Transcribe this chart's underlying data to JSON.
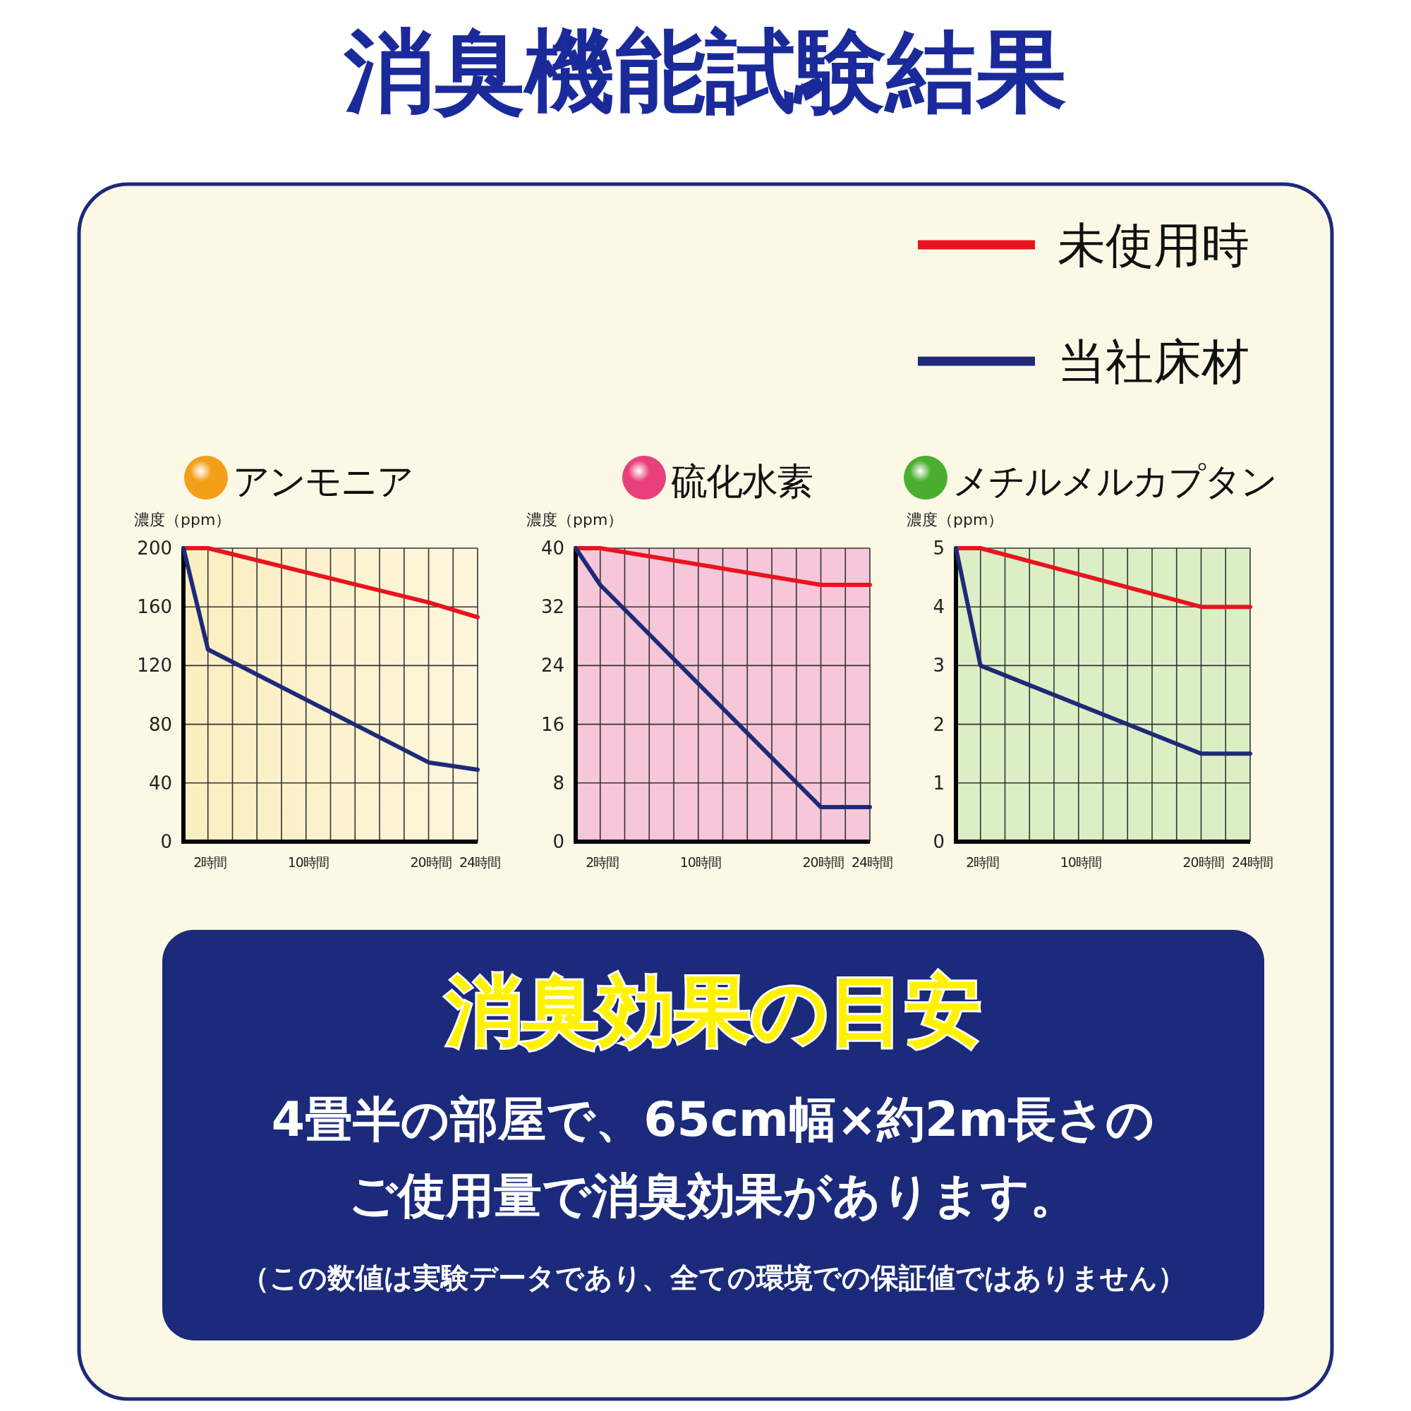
{
  "chart_data": [
    {
      "type": "other",
      "title": "消臭機能試験結果"
    },
    {
      "type": "line",
      "title": "アンモニア",
      "ylabel": "濃度（ppm）",
      "x": [
        0,
        2,
        20,
        24
      ],
      "xlim": [
        0,
        24
      ],
      "ylim": [
        0,
        200
      ],
      "yticks": [
        0,
        40,
        80,
        120,
        160,
        200
      ],
      "xticks": [
        {
          "value": 2,
          "label": "2時間"
        },
        {
          "value": 4,
          "label": null
        },
        {
          "value": 6,
          "label": null
        },
        {
          "value": 8,
          "label": null
        },
        {
          "value": 10,
          "label": "10時間"
        },
        {
          "value": 12,
          "label": null
        },
        {
          "value": 14,
          "label": null
        },
        {
          "value": 16,
          "label": null
        },
        {
          "value": 18,
          "label": null
        },
        {
          "value": 20,
          "label": "20時間"
        },
        {
          "value": 22,
          "label": null
        },
        {
          "value": 24,
          "label": "24時間"
        }
      ],
      "grid": true,
      "legend": "top right",
      "series": [
        {
          "name": "未使用時",
          "color": "#e8141e",
          "values": [
            200,
            200,
            163,
            153
          ]
        },
        {
          "name": "当社床材",
          "color": "#1e2a78",
          "values": [
            200,
            131,
            54,
            49
          ]
        }
      ]
    },
    {
      "type": "line",
      "title": "硫化水素",
      "ylabel": "濃度（ppm）",
      "x": [
        0,
        2,
        20,
        24
      ],
      "xlim": [
        0,
        24
      ],
      "ylim": [
        0,
        40
      ],
      "yticks": [
        0,
        8,
        16,
        24,
        32,
        40
      ],
      "xticks": [
        {
          "value": 2,
          "label": "2時間"
        },
        {
          "value": 4,
          "label": null
        },
        {
          "value": 6,
          "label": null
        },
        {
          "value": 8,
          "label": null
        },
        {
          "value": 10,
          "label": "10時間"
        },
        {
          "value": 12,
          "label": null
        },
        {
          "value": 14,
          "label": null
        },
        {
          "value": 16,
          "label": null
        },
        {
          "value": 18,
          "label": null
        },
        {
          "value": 20,
          "label": "20時間"
        },
        {
          "value": 22,
          "label": null
        },
        {
          "value": 24,
          "label": "24時間"
        }
      ],
      "grid": true,
      "series": [
        {
          "color": "#e8141e",
          "values": [
            40,
            40,
            35,
            35
          ]
        },
        {
          "color": "#1e2a78",
          "values": [
            40,
            35,
            4.7,
            4.7
          ]
        }
      ]
    },
    {
      "type": "line",
      "title": "メチルメルカプタン",
      "ylabel": "濃度（ppm）",
      "x": [
        0,
        2,
        20,
        24
      ],
      "xlim": [
        0,
        24
      ],
      "ylim": [
        0,
        5
      ],
      "yticks": [
        0,
        1,
        2,
        3,
        4,
        5
      ],
      "xticks": [
        {
          "value": 2,
          "label": "2時間"
        },
        {
          "value": 4,
          "label": null
        },
        {
          "value": 6,
          "label": null
        },
        {
          "value": 8,
          "label": null
        },
        {
          "value": 10,
          "label": "10時間"
        },
        {
          "value": 12,
          "label": null
        },
        {
          "value": 14,
          "label": null
        },
        {
          "value": 16,
          "label": null
        },
        {
          "value": 18,
          "label": null
        },
        {
          "value": 20,
          "label": "20時間"
        },
        {
          "value": 22,
          "label": null
        },
        {
          "value": 24,
          "label": "24時間"
        }
      ],
      "grid": true,
      "series": [
        {
          "color": "#e8141e",
          "values": [
            5,
            5,
            4,
            4
          ]
        },
        {
          "color": "#1e2a78",
          "values": [
            5,
            3,
            1.5,
            1.5
          ]
        }
      ]
    },
    {
      "type": "other",
      "title": "消臭効果の目安",
      "annotations": [
        "4畳半の部屋で、65cm幅×約2m長さの",
        "ご使用量で消臭効果があります。",
        "（この数値は実験データであり、全ての環境での保証値ではありません）"
      ]
    }
  ]
}
